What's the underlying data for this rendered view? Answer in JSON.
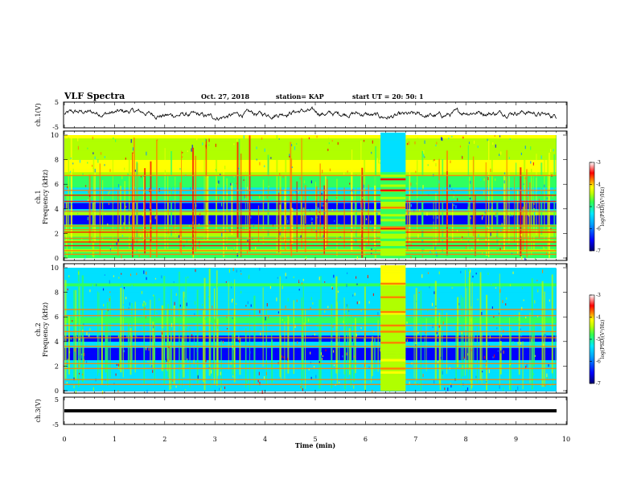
{
  "header": {
    "title": "VLF Spectra",
    "date": "Oct. 27, 2018",
    "station": "station= KAP",
    "start_ut": "start  UT =   20: 50: 1"
  },
  "chart_data": [
    {
      "type": "line",
      "name": "ch1-waveform",
      "ylabel": "ch.1(V)",
      "ylim": [
        -5,
        5
      ],
      "yticks": [
        5,
        -5
      ],
      "xlim": [
        0,
        10
      ],
      "description_values": {
        "mean_level": 0.3,
        "approx_amplitude": 1.8
      }
    },
    {
      "type": "heatmap",
      "name": "ch1-spectrogram",
      "ylabel": "ch.1  Frequency (kHz)",
      "ylim": [
        0,
        10
      ],
      "yticks": [
        0,
        2,
        4,
        6,
        8,
        10
      ],
      "xlim": [
        0,
        10
      ],
      "data_end_min": 9.8,
      "colorbar": {
        "label": "log(PSD)(V²/Hz)",
        "range": [
          -7,
          -3
        ],
        "ticks": [
          -3,
          -4,
          -5,
          -6,
          -7
        ]
      },
      "bright_lines_khz": [
        0.3,
        0.6,
        1.0,
        1.3,
        1.6,
        2.1,
        2.3,
        2.6,
        3.8,
        4.6,
        5.1,
        5.5,
        6.7
      ],
      "dark_bands_khz": [
        [
          2.7,
          3.4
        ],
        [
          3.9,
          4.5
        ]
      ],
      "event_window_min": [
        6.3,
        6.8
      ]
    },
    {
      "type": "heatmap",
      "name": "ch2-spectrogram",
      "ylabel": "ch.2  Frequency (kHz)",
      "ylim": [
        0,
        10
      ],
      "yticks": [
        0,
        2,
        4,
        6,
        8,
        10
      ],
      "xlim": [
        0,
        10
      ],
      "data_end_min": 9.8,
      "colorbar": {
        "label": "log(PSD)(V²/Hz)",
        "range": [
          -7,
          -3
        ],
        "ticks": [
          -3,
          -4,
          -5,
          -6,
          -7
        ]
      },
      "bright_lines_khz": [
        0.5,
        0.9,
        1.8,
        2.2,
        3.6,
        4.3,
        4.8,
        5.3,
        6.1,
        6.6
      ],
      "dark_bands_khz": [
        [
          2.4,
          3.3
        ],
        [
          3.8,
          4.4
        ]
      ],
      "event_window_min": [
        6.3,
        6.8
      ]
    },
    {
      "type": "line",
      "name": "ch3-waveform",
      "ylabel": "ch.3(V)",
      "ylim": [
        -5,
        5
      ],
      "yticks": [
        5,
        -5
      ],
      "xlim": [
        0,
        10
      ],
      "constant_value": 0
    }
  ],
  "xaxis": {
    "label": "Time  (min)",
    "ticks": [
      "0",
      "1",
      "2",
      "3",
      "4",
      "5",
      "6",
      "7",
      "8",
      "9",
      "10"
    ]
  },
  "colors": {
    "spec_ramp": [
      "#000070",
      "#0000ff",
      "#0090ff",
      "#00e0ff",
      "#30ff60",
      "#b0ff00",
      "#ffff00",
      "#ff8000",
      "#ff0000",
      "#ffffff"
    ]
  }
}
